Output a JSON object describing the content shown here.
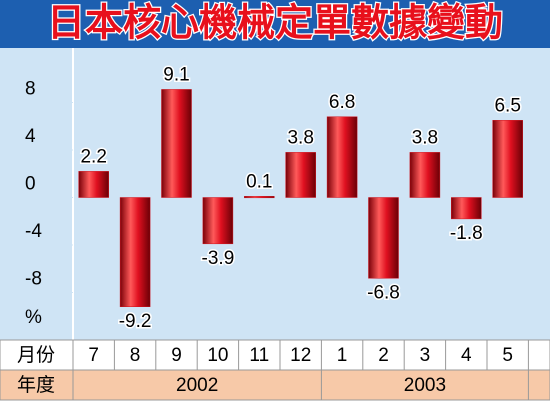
{
  "chart_data": {
    "type": "bar",
    "title": "日本核心機械定單數據變動",
    "y_unit_label": "%",
    "month_header": "月份",
    "year_header": "年度",
    "groups": [
      {
        "year": "2002",
        "months": [
          "7",
          "8",
          "9",
          "10",
          "11",
          "12"
        ]
      },
      {
        "year": "2003",
        "months": [
          "1",
          "2",
          "3",
          "4",
          "5"
        ]
      }
    ],
    "values": [
      2.2,
      -9.2,
      9.1,
      -3.9,
      0.1,
      3.8,
      6.8,
      -6.8,
      3.8,
      -1.8,
      6.5
    ],
    "color": "#d0101a",
    "ylim": [
      -12,
      12
    ],
    "yticks": [
      8,
      4,
      0,
      -4,
      -8
    ]
  }
}
